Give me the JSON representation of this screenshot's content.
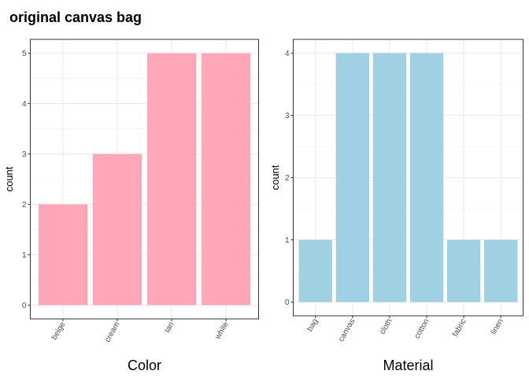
{
  "title": "original canvas bag",
  "chart_data": [
    {
      "type": "bar",
      "xlabel": "Color",
      "ylabel": "count",
      "categories": [
        "beige",
        "cream",
        "tan",
        "white"
      ],
      "values": [
        2,
        3,
        5,
        5
      ],
      "color": "#FFA7B8",
      "ylim": [
        0,
        5
      ],
      "yticks": [
        0,
        1,
        2,
        3,
        4,
        5
      ],
      "grid": true
    },
    {
      "type": "bar",
      "xlabel": "Material",
      "ylabel": "count",
      "categories": [
        "bag",
        "canvas",
        "cloth",
        "cotton",
        "fabric",
        "linen"
      ],
      "values": [
        1,
        4,
        4,
        4,
        1,
        1
      ],
      "color": "#A0D1E2",
      "ylim": [
        0,
        4
      ],
      "yticks": [
        0,
        1,
        2,
        3,
        4
      ],
      "grid": true
    }
  ]
}
